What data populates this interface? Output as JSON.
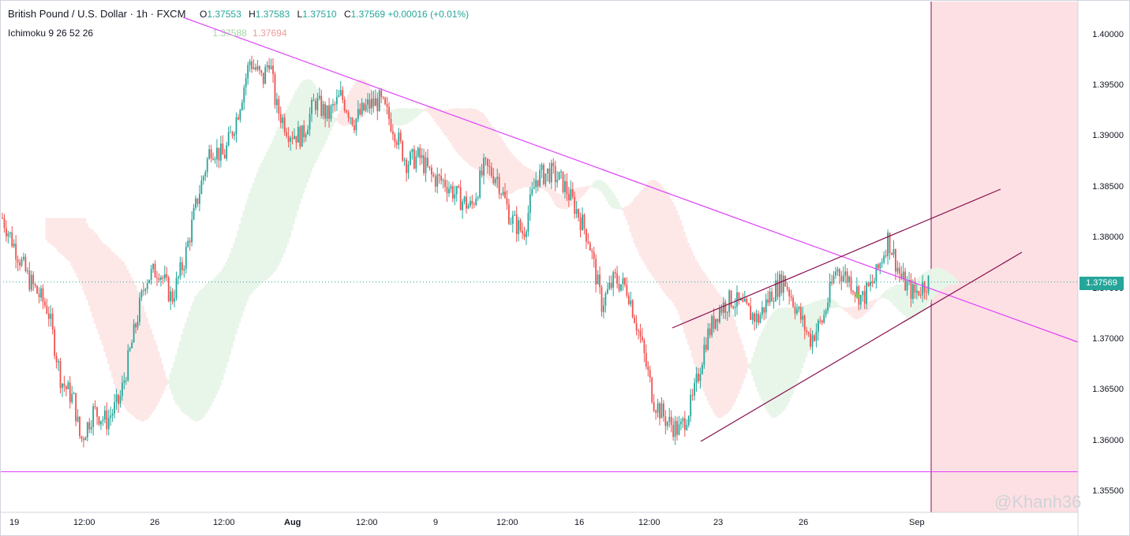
{
  "header": {
    "symbol": "British Pound / U.S. Dollar · 1h · FXCM",
    "o_label": "O",
    "o": "1.37553",
    "h_label": "H",
    "h": "1.37583",
    "l_label": "L",
    "l": "1.37510",
    "c_label": "C",
    "c": "1.37569",
    "change": "+0.00016 (+0.01%)"
  },
  "indicator": {
    "name": "Ichimoku 9 26 52 26",
    "value_a": "1.37588",
    "value_b": "1.37694"
  },
  "price_badge": "1.37569",
  "watermark": "@Khanh36",
  "colors": {
    "up": "#26a69a",
    "down": "#ef5350",
    "trendline": "#e040fb",
    "channel": "#880e4f",
    "cloud_bull": "#e8f5e9",
    "cloud_bear": "#fde7e7",
    "future_zone": "#fde0e3"
  },
  "chart_data": {
    "type": "candlestick",
    "title": "British Pound / U.S. Dollar · 1h · FXCM",
    "y_axis": {
      "ticks": [
        "1.40000",
        "1.39500",
        "1.39000",
        "1.38500",
        "1.38000",
        "1.37500",
        "1.37000",
        "1.36500",
        "1.36000",
        "1.35500"
      ],
      "range": [
        1.353,
        1.4033
      ]
    },
    "x_axis": {
      "ticks": [
        {
          "label": "19",
          "bold": false
        },
        {
          "label": "12:00",
          "bold": false
        },
        {
          "label": "26",
          "bold": false
        },
        {
          "label": "12:00",
          "bold": false
        },
        {
          "label": "Aug",
          "bold": true
        },
        {
          "label": "12:00",
          "bold": false
        },
        {
          "label": "9",
          "bold": false
        },
        {
          "label": "12:00",
          "bold": false
        },
        {
          "label": "16",
          "bold": false
        },
        {
          "label": "12:00",
          "bold": false
        },
        {
          "label": "23",
          "bold": false
        },
        {
          "label": "26",
          "bold": false
        },
        {
          "label": "Sep",
          "bold": false
        }
      ]
    },
    "price_path": [
      [
        0,
        1.382
      ],
      [
        4,
        1.376
      ],
      [
        7,
        1.373
      ],
      [
        9,
        1.366
      ],
      [
        11,
        1.364
      ],
      [
        12,
        1.36
      ],
      [
        14,
        1.363
      ],
      [
        16,
        1.362
      ],
      [
        18,
        1.364
      ],
      [
        20,
        1.37
      ],
      [
        22,
        1.376
      ],
      [
        24,
        1.377
      ],
      [
        26,
        1.374
      ],
      [
        28,
        1.378
      ],
      [
        30,
        1.384
      ],
      [
        32,
        1.389
      ],
      [
        34,
        1.388
      ],
      [
        36,
        1.392
      ],
      [
        38,
        1.3975
      ],
      [
        40,
        1.3955
      ],
      [
        41,
        1.3978
      ],
      [
        42,
        1.393
      ],
      [
        44,
        1.3905
      ],
      [
        46,
        1.39
      ],
      [
        48,
        1.3935
      ],
      [
        50,
        1.392
      ],
      [
        52,
        1.394
      ],
      [
        54,
        1.3915
      ],
      [
        56,
        1.393
      ],
      [
        58,
        1.3935
      ],
      [
        60,
        1.391
      ],
      [
        62,
        1.3875
      ],
      [
        64,
        1.388
      ],
      [
        66,
        1.386
      ],
      [
        68,
        1.3855
      ],
      [
        70,
        1.384
      ],
      [
        72,
        1.383
      ],
      [
        74,
        1.387
      ],
      [
        76,
        1.386
      ],
      [
        78,
        1.382
      ],
      [
        80,
        1.3805
      ],
      [
        82,
        1.386
      ],
      [
        84,
        1.3865
      ],
      [
        86,
        1.3855
      ],
      [
        88,
        1.383
      ],
      [
        90,
        1.38
      ],
      [
        92,
        1.3735
      ],
      [
        94,
        1.376
      ],
      [
        96,
        1.375
      ],
      [
        98,
        1.37
      ],
      [
        100,
        1.364
      ],
      [
        102,
        1.362
      ],
      [
        104,
        1.361
      ],
      [
        106,
        1.364
      ],
      [
        108,
        1.37
      ],
      [
        110,
        1.373
      ],
      [
        112,
        1.374
      ],
      [
        114,
        1.373
      ],
      [
        116,
        1.372
      ],
      [
        118,
        1.3745
      ],
      [
        120,
        1.376
      ],
      [
        122,
        1.373
      ],
      [
        124,
        1.37
      ],
      [
        126,
        1.372
      ],
      [
        128,
        1.377
      ],
      [
        130,
        1.376
      ],
      [
        132,
        1.374
      ],
      [
        134,
        1.376
      ],
      [
        136,
        1.38
      ],
      [
        138,
        1.376
      ],
      [
        140,
        1.3745
      ],
      [
        142,
        1.3757
      ]
    ],
    "horizontal_line": 1.357,
    "last_price": 1.37569,
    "trendlines": [
      {
        "name": "descending",
        "from": [
          "Jul 20",
          "1.4025"
        ],
        "to": [
          "Sep 2",
          "1.3700"
        ]
      },
      {
        "name": "channel-upper",
        "from": [
          "Aug 20",
          "1.3712"
        ],
        "to": [
          "Sep 2",
          "1.3850"
        ]
      },
      {
        "name": "channel-lower",
        "from": [
          "Aug 20",
          "1.3600"
        ],
        "to": [
          "Sep 2",
          "1.3785"
        ]
      }
    ]
  }
}
